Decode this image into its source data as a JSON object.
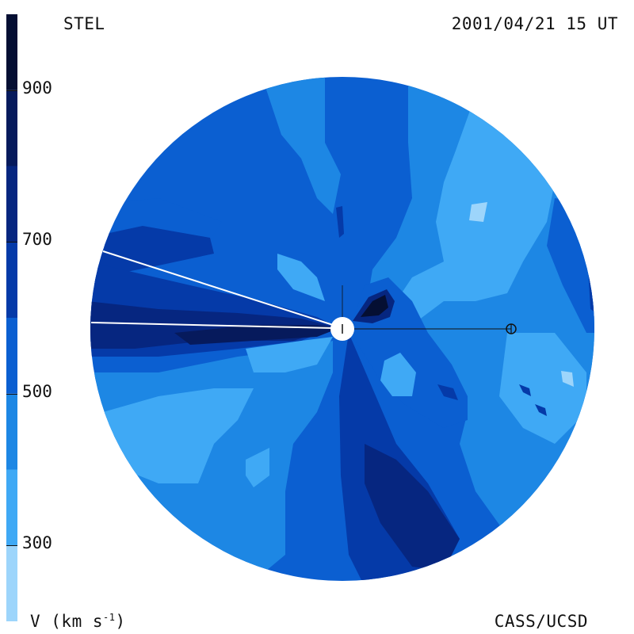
{
  "header": {
    "observatory": "STEL",
    "timestamp": "2001/04/21 15 UT"
  },
  "footer": {
    "unit_prefix": "V (km s",
    "unit_exponent": "-1",
    "unit_suffix": ")",
    "credit": "CASS/UCSD"
  },
  "colorbar": {
    "ticks": [
      {
        "label": "900",
        "value": 900
      },
      {
        "label": "700",
        "value": 700
      },
      {
        "label": "500",
        "value": 500
      },
      {
        "label": "300",
        "value": 300
      }
    ],
    "bands": [
      {
        "from": 200,
        "to": 300,
        "color": "#9dd5fb"
      },
      {
        "from": 300,
        "to": 400,
        "color": "#3fa9f5"
      },
      {
        "from": 400,
        "to": 500,
        "color": "#1d87e4"
      },
      {
        "from": 500,
        "to": 600,
        "color": "#0b5fd1"
      },
      {
        "from": 600,
        "to": 700,
        "color": "#053aa8"
      },
      {
        "from": 700,
        "to": 800,
        "color": "#062680"
      },
      {
        "from": 800,
        "to": 900,
        "color": "#061a5c"
      },
      {
        "from": 900,
        "to": 1000,
        "color": "#050f33"
      }
    ],
    "min": 200,
    "max": 1000
  },
  "colors": {
    "background_disk": "#1d87e4",
    "sun": "#ffffff",
    "earth_line": "#111111",
    "white_lines": "#ffffff"
  }
}
